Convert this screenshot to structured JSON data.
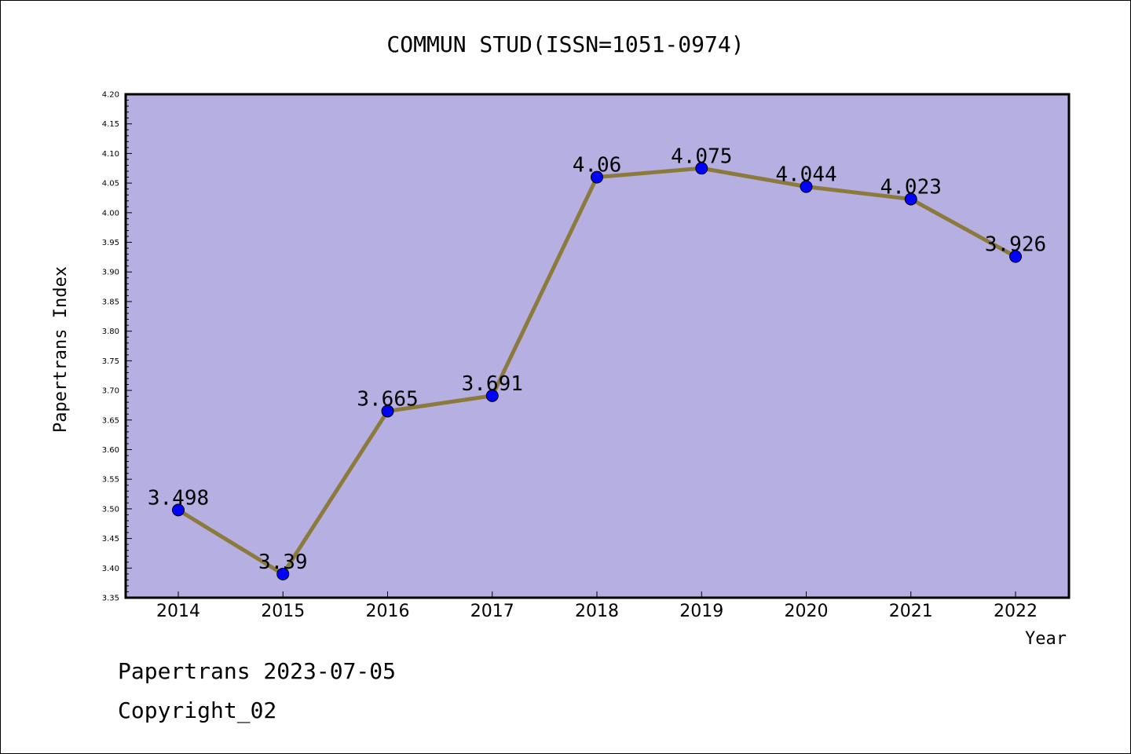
{
  "chart_data": {
    "type": "line",
    "title": "COMMUN STUD(ISSN=1051-0974)",
    "xlabel": "Year",
    "ylabel": "Papertrans Index",
    "categories": [
      "2014",
      "2015",
      "2016",
      "2017",
      "2018",
      "2019",
      "2020",
      "2021",
      "2022"
    ],
    "values": [
      3.498,
      3.39,
      3.665,
      3.691,
      4.06,
      4.075,
      4.044,
      4.023,
      3.926
    ],
    "data_labels": [
      "3.498",
      "3.39",
      "3.665",
      "3.691",
      "4.06",
      "4.075",
      "4.044",
      "4.023",
      "3.926"
    ],
    "ylim": [
      3.35,
      4.2
    ],
    "yticks": [
      "3.35",
      "3.40",
      "3.45",
      "3.50",
      "3.55",
      "3.60",
      "3.65",
      "3.70",
      "3.75",
      "3.80",
      "3.85",
      "3.90",
      "3.95",
      "4.00",
      "4.05",
      "4.10",
      "4.15",
      "4.20"
    ],
    "grid": false,
    "colors": {
      "plot_background": "#b5afe2",
      "line": "#8b7a3c",
      "marker": "#0000ff"
    }
  },
  "footer": {
    "line1": "Papertrans 2023-07-05",
    "line2": "Copyright_02"
  }
}
